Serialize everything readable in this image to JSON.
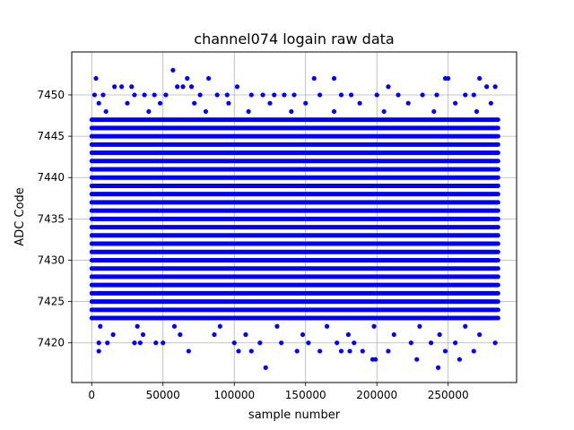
{
  "chart_data": {
    "type": "scatter",
    "title": "channel074 logain raw data",
    "xlabel": "sample number",
    "ylabel": "ADC Code",
    "xlim": [
      -14000,
      298000
    ],
    "ylim": [
      7415.2,
      7455.2
    ],
    "xticks": [
      0,
      50000,
      100000,
      150000,
      200000,
      250000
    ],
    "yticks": [
      7420,
      7425,
      7430,
      7435,
      7440,
      7445,
      7450
    ],
    "grid": true,
    "marker_color": "#0000ff",
    "x_range": [
      0,
      285000
    ],
    "dense_band": {
      "from": 7423,
      "to": 7447,
      "step": 1
    },
    "sparse_points": [
      {
        "x": 3000,
        "y": 7452
      },
      {
        "x": 57000,
        "y": 7453
      },
      {
        "x": 67000,
        "y": 7452
      },
      {
        "x": 82000,
        "y": 7452
      },
      {
        "x": 156000,
        "y": 7452
      },
      {
        "x": 170000,
        "y": 7452
      },
      {
        "x": 248000,
        "y": 7452
      },
      {
        "x": 250000,
        "y": 7452
      },
      {
        "x": 272000,
        "y": 7452
      },
      {
        "x": 2000,
        "y": 7450
      },
      {
        "x": 8000,
        "y": 7450
      },
      {
        "x": 16000,
        "y": 7451
      },
      {
        "x": 21000,
        "y": 7451
      },
      {
        "x": 28000,
        "y": 7451
      },
      {
        "x": 30000,
        "y": 7450
      },
      {
        "x": 37000,
        "y": 7450
      },
      {
        "x": 44000,
        "y": 7450
      },
      {
        "x": 52000,
        "y": 7450
      },
      {
        "x": 60000,
        "y": 7451
      },
      {
        "x": 64000,
        "y": 7451
      },
      {
        "x": 70000,
        "y": 7451
      },
      {
        "x": 76000,
        "y": 7450
      },
      {
        "x": 88000,
        "y": 7450
      },
      {
        "x": 95000,
        "y": 7450
      },
      {
        "x": 102000,
        "y": 7451
      },
      {
        "x": 112000,
        "y": 7450
      },
      {
        "x": 120000,
        "y": 7450
      },
      {
        "x": 128000,
        "y": 7450
      },
      {
        "x": 135000,
        "y": 7450
      },
      {
        "x": 142000,
        "y": 7450
      },
      {
        "x": 160000,
        "y": 7450
      },
      {
        "x": 175000,
        "y": 7450
      },
      {
        "x": 182000,
        "y": 7450
      },
      {
        "x": 200000,
        "y": 7450
      },
      {
        "x": 208000,
        "y": 7451
      },
      {
        "x": 215000,
        "y": 7450
      },
      {
        "x": 232000,
        "y": 7450
      },
      {
        "x": 242000,
        "y": 7450
      },
      {
        "x": 262000,
        "y": 7450
      },
      {
        "x": 268000,
        "y": 7450
      },
      {
        "x": 277000,
        "y": 7451
      },
      {
        "x": 283000,
        "y": 7451
      },
      {
        "x": 5000,
        "y": 7449
      },
      {
        "x": 25000,
        "y": 7449
      },
      {
        "x": 48000,
        "y": 7449
      },
      {
        "x": 72000,
        "y": 7449
      },
      {
        "x": 96000,
        "y": 7449
      },
      {
        "x": 125000,
        "y": 7449
      },
      {
        "x": 150000,
        "y": 7449
      },
      {
        "x": 188000,
        "y": 7449
      },
      {
        "x": 222000,
        "y": 7449
      },
      {
        "x": 255000,
        "y": 7449
      },
      {
        "x": 280000,
        "y": 7449
      },
      {
        "x": 10000,
        "y": 7448
      },
      {
        "x": 40000,
        "y": 7448
      },
      {
        "x": 80000,
        "y": 7448
      },
      {
        "x": 110000,
        "y": 7448
      },
      {
        "x": 140000,
        "y": 7448
      },
      {
        "x": 170000,
        "y": 7448
      },
      {
        "x": 205000,
        "y": 7448
      },
      {
        "x": 240000,
        "y": 7448
      },
      {
        "x": 270000,
        "y": 7448
      },
      {
        "x": 6000,
        "y": 7422
      },
      {
        "x": 32000,
        "y": 7422
      },
      {
        "x": 58000,
        "y": 7422
      },
      {
        "x": 90000,
        "y": 7422
      },
      {
        "x": 130000,
        "y": 7422
      },
      {
        "x": 165000,
        "y": 7422
      },
      {
        "x": 198000,
        "y": 7422
      },
      {
        "x": 230000,
        "y": 7422
      },
      {
        "x": 262000,
        "y": 7422
      },
      {
        "x": 15000,
        "y": 7421
      },
      {
        "x": 36000,
        "y": 7421
      },
      {
        "x": 62000,
        "y": 7421
      },
      {
        "x": 86000,
        "y": 7421
      },
      {
        "x": 108000,
        "y": 7421
      },
      {
        "x": 148000,
        "y": 7421
      },
      {
        "x": 180000,
        "y": 7421
      },
      {
        "x": 212000,
        "y": 7421
      },
      {
        "x": 244000,
        "y": 7421
      },
      {
        "x": 272000,
        "y": 7421
      },
      {
        "x": 5000,
        "y": 7420
      },
      {
        "x": 11000,
        "y": 7420
      },
      {
        "x": 30000,
        "y": 7420
      },
      {
        "x": 34000,
        "y": 7420
      },
      {
        "x": 45000,
        "y": 7420
      },
      {
        "x": 50000,
        "y": 7420
      },
      {
        "x": 100000,
        "y": 7420
      },
      {
        "x": 118000,
        "y": 7420
      },
      {
        "x": 133000,
        "y": 7420
      },
      {
        "x": 152000,
        "y": 7420
      },
      {
        "x": 172000,
        "y": 7420
      },
      {
        "x": 184000,
        "y": 7420
      },
      {
        "x": 224000,
        "y": 7420
      },
      {
        "x": 238000,
        "y": 7420
      },
      {
        "x": 255000,
        "y": 7420
      },
      {
        "x": 283000,
        "y": 7420
      },
      {
        "x": 5000,
        "y": 7419
      },
      {
        "x": 68000,
        "y": 7419
      },
      {
        "x": 103000,
        "y": 7419
      },
      {
        "x": 112000,
        "y": 7419
      },
      {
        "x": 144000,
        "y": 7419
      },
      {
        "x": 160000,
        "y": 7419
      },
      {
        "x": 175000,
        "y": 7419
      },
      {
        "x": 181000,
        "y": 7419
      },
      {
        "x": 190000,
        "y": 7419
      },
      {
        "x": 208000,
        "y": 7419
      },
      {
        "x": 248000,
        "y": 7419
      },
      {
        "x": 268000,
        "y": 7419
      },
      {
        "x": 197000,
        "y": 7418
      },
      {
        "x": 199000,
        "y": 7418
      },
      {
        "x": 228000,
        "y": 7418
      },
      {
        "x": 258000,
        "y": 7418
      },
      {
        "x": 122000,
        "y": 7417
      },
      {
        "x": 243000,
        "y": 7417
      }
    ]
  }
}
